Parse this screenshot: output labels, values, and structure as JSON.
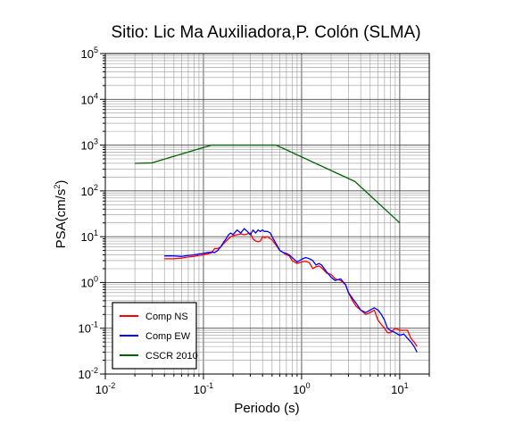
{
  "chart_data": {
    "type": "line",
    "title": "Sitio: Lic Ma Auxiliadora,P. Colón (SLMA)",
    "xlabel": "Periodo (s)",
    "ylabel_base": "PSA(cm/s",
    "ylabel_sup": "2",
    "ylabel_close": ")",
    "x_scale": "log",
    "y_scale": "log",
    "xlim": [
      0.01,
      20
    ],
    "ylim": [
      0.01,
      100000
    ],
    "grid": true,
    "legend_position": "bottom-left",
    "x_ticks": [
      {
        "base": "10",
        "exp": "-2"
      },
      {
        "base": "10",
        "exp": "-1"
      },
      {
        "base": "10",
        "exp": "0"
      },
      {
        "base": "10",
        "exp": "1"
      }
    ],
    "y_ticks": [
      {
        "base": "10",
        "exp": "-2"
      },
      {
        "base": "10",
        "exp": "-1"
      },
      {
        "base": "10",
        "exp": "0"
      },
      {
        "base": "10",
        "exp": "1"
      },
      {
        "base": "10",
        "exp": "2"
      },
      {
        "base": "10",
        "exp": "3"
      },
      {
        "base": "10",
        "exp": "4"
      },
      {
        "base": "10",
        "exp": "5"
      }
    ],
    "series": [
      {
        "name": "Comp NS",
        "color": "#ff0000",
        "x": [
          0.04,
          0.05,
          0.06,
          0.07,
          0.08,
          0.09,
          0.1,
          0.11,
          0.12,
          0.13,
          0.14,
          0.15,
          0.16,
          0.17,
          0.18,
          0.19,
          0.2,
          0.22,
          0.24,
          0.26,
          0.28,
          0.3,
          0.32,
          0.34,
          0.36,
          0.38,
          0.4,
          0.42,
          0.45,
          0.48,
          0.5,
          0.55,
          0.6,
          0.65,
          0.7,
          0.75,
          0.8,
          0.9,
          1.0,
          1.1,
          1.2,
          1.3,
          1.4,
          1.5,
          1.6,
          1.8,
          2.0,
          2.2,
          2.5,
          2.8,
          3.0,
          3.3,
          3.6,
          4.0,
          4.5,
          5.0,
          5.5,
          6.0,
          6.5,
          7.0,
          7.5,
          8.0,
          9.0,
          10.0,
          11.0,
          12.0,
          13.0,
          14.0,
          15.0
        ],
        "values": [
          3.3,
          3.3,
          3.4,
          3.6,
          3.7,
          3.9,
          4.0,
          4.2,
          4.4,
          5.5,
          5.5,
          6.0,
          7.0,
          8.0,
          9.0,
          10.0,
          10.5,
          11.0,
          11.5,
          11.0,
          11.5,
          12.0,
          9.0,
          8.0,
          7.8,
          8.0,
          10.0,
          9.5,
          10.0,
          9.0,
          8.5,
          6.5,
          5.0,
          4.5,
          4.0,
          3.8,
          3.0,
          2.6,
          2.8,
          2.9,
          2.7,
          2.0,
          2.2,
          2.3,
          2.1,
          1.6,
          1.5,
          1.2,
          1.1,
          0.9,
          0.6,
          0.4,
          0.3,
          0.25,
          0.2,
          0.22,
          0.25,
          0.15,
          0.12,
          0.1,
          0.08,
          0.08,
          0.1,
          0.09,
          0.09,
          0.09,
          0.06,
          0.05,
          0.04
        ]
      },
      {
        "name": "Comp EW",
        "color": "#0000ff",
        "x": [
          0.04,
          0.05,
          0.06,
          0.07,
          0.08,
          0.09,
          0.1,
          0.11,
          0.12,
          0.13,
          0.14,
          0.15,
          0.16,
          0.17,
          0.18,
          0.19,
          0.2,
          0.22,
          0.24,
          0.26,
          0.28,
          0.3,
          0.32,
          0.34,
          0.36,
          0.38,
          0.4,
          0.42,
          0.45,
          0.48,
          0.5,
          0.55,
          0.6,
          0.65,
          0.7,
          0.75,
          0.8,
          0.9,
          1.0,
          1.1,
          1.2,
          1.3,
          1.4,
          1.5,
          1.6,
          1.8,
          2.0,
          2.2,
          2.5,
          2.8,
          3.0,
          3.3,
          3.6,
          4.0,
          4.5,
          5.0,
          5.5,
          6.0,
          6.5,
          7.0,
          7.5,
          8.0,
          9.0,
          10.0,
          11.0,
          12.0,
          13.0,
          14.0,
          15.0
        ],
        "values": [
          3.8,
          3.8,
          3.7,
          3.9,
          4.0,
          4.2,
          4.3,
          4.5,
          4.6,
          4.5,
          5.0,
          6.0,
          7.5,
          9.0,
          11.0,
          12.0,
          11.0,
          14.0,
          12.0,
          15.0,
          13.0,
          11.0,
          14.0,
          12.0,
          14.0,
          13.0,
          14.0,
          13.0,
          13.0,
          12.0,
          10.0,
          7.0,
          5.0,
          4.5,
          4.3,
          4.0,
          3.5,
          2.8,
          3.2,
          3.5,
          3.3,
          3.0,
          2.4,
          2.6,
          2.4,
          1.7,
          1.3,
          1.1,
          1.2,
          0.9,
          0.6,
          0.45,
          0.35,
          0.25,
          0.22,
          0.25,
          0.28,
          0.25,
          0.2,
          0.15,
          0.1,
          0.09,
          0.08,
          0.07,
          0.075,
          0.06,
          0.05,
          0.04,
          0.03
        ]
      },
      {
        "name": "CSCR 2010",
        "color": "#006400",
        "x": [
          0.02,
          0.03,
          0.12,
          0.55,
          3.5,
          10.0
        ],
        "values": [
          400,
          410,
          1000,
          1000,
          160,
          20
        ]
      }
    ]
  }
}
